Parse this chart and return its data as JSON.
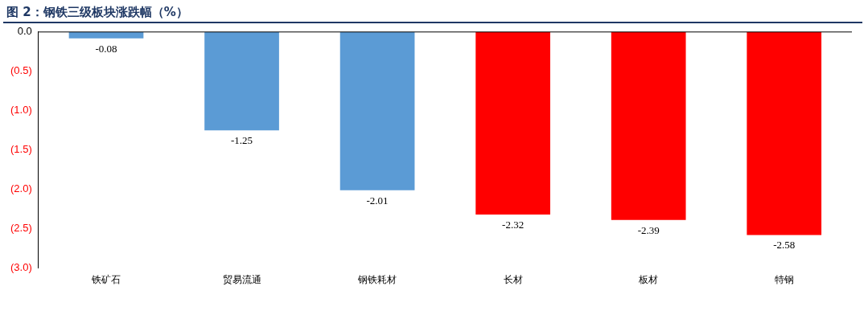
{
  "chart_data": {
    "type": "bar",
    "title": "图 2：钢铁三级板块涨跌幅（%）",
    "categories": [
      "铁矿石",
      "贸易流通",
      "钢铁耗材",
      "长材",
      "板材",
      "特钢"
    ],
    "values": [
      -0.08,
      -1.25,
      -2.01,
      -2.32,
      -2.39,
      -2.58
    ],
    "colors": [
      "#5b9bd5",
      "#5b9bd5",
      "#5b9bd5",
      "#ff0000",
      "#ff0000",
      "#ff0000"
    ],
    "ylim": [
      -3,
      0
    ],
    "yticks": [
      {
        "value": 0,
        "label": "0.0"
      },
      {
        "value": -0.5,
        "label": "(0.5)"
      },
      {
        "value": -1,
        "label": "(1.0)"
      },
      {
        "value": -1.5,
        "label": "(1.5)"
      },
      {
        "value": -2,
        "label": "(2.0)"
      },
      {
        "value": -2.5,
        "label": "(2.5)"
      },
      {
        "value": -3,
        "label": "(3.0)"
      }
    ],
    "data_labels": true,
    "grid": false,
    "legend": false
  }
}
